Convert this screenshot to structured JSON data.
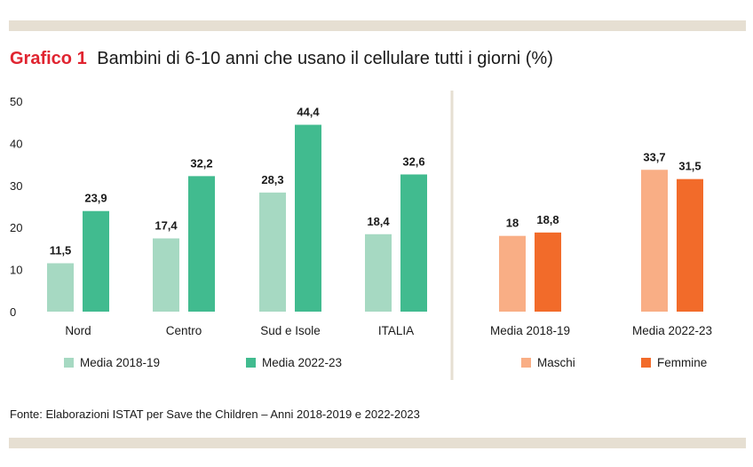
{
  "header": {
    "label": "Grafico 1",
    "title": "Bambini di 6-10 anni che usano il cellulare tutti i giorni (%)"
  },
  "source": "Fonte: Elaborazioni ISTAT per Save the Children – Anni 2018-2019 e 2022-2023",
  "chart_data": [
    {
      "type": "bar",
      "categories": [
        "Nord",
        "Centro",
        "Sud e Isole",
        "ITALIA"
      ],
      "series": [
        {
          "name": "Media 2018-19",
          "values": [
            11.5,
            17.4,
            28.3,
            18.4
          ],
          "labels": [
            "11,5",
            "17,4",
            "28,3",
            "18,4"
          ],
          "color": "#a6d9c2"
        },
        {
          "name": "Media 2022-23",
          "values": [
            23.9,
            32.2,
            44.4,
            32.6
          ],
          "labels": [
            "23,9",
            "32,2",
            "44,4",
            "32,6"
          ],
          "color": "#41bb8f"
        }
      ],
      "yticks": [
        0,
        10,
        20,
        30,
        40,
        50
      ],
      "ylim": [
        0,
        50
      ],
      "grid": false,
      "legend": "bottom"
    },
    {
      "type": "bar",
      "categories": [
        "Media 2018-19",
        "Media 2022-23"
      ],
      "series": [
        {
          "name": "Maschi",
          "values": [
            18,
            33.7
          ],
          "labels": [
            "18",
            "33,7"
          ],
          "color": "#f9ae85"
        },
        {
          "name": "Femmine",
          "values": [
            18.8,
            31.5
          ],
          "labels": [
            "18,8",
            "31,5"
          ],
          "color": "#f26b2a"
        }
      ],
      "ylim": [
        0,
        50
      ],
      "grid": false,
      "legend": "bottom"
    }
  ],
  "colors": {
    "accent": "#e02430",
    "band": "#e6dfd2",
    "divider": "#e6dfd2"
  }
}
